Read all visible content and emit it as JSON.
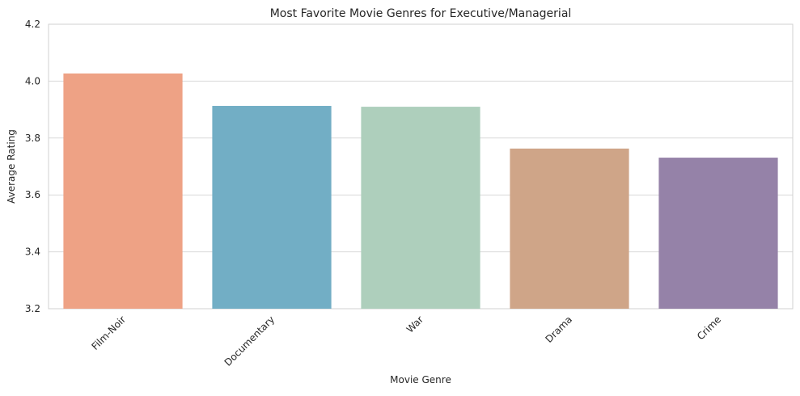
{
  "chart_data": {
    "type": "bar",
    "title": "Most Favorite Movie Genres for Executive/Managerial",
    "x_label": "Movie Genre",
    "y_label": "Average Rating",
    "categories": [
      "Film-Noir",
      "Documentary",
      "War",
      "Drama",
      "Crime"
    ],
    "values": [
      4.027,
      3.913,
      3.91,
      3.763,
      3.731
    ],
    "colors": [
      "#eea285",
      "#72aec5",
      "#aecfbc",
      "#cfa588",
      "#9582a8"
    ],
    "ylim": [
      3.2,
      4.2
    ],
    "yticks": [
      3.2,
      3.4,
      3.6,
      3.8,
      {
        "value": 4,
        "label": "4.0"
      },
      4.2
    ],
    "grid": true
  }
}
